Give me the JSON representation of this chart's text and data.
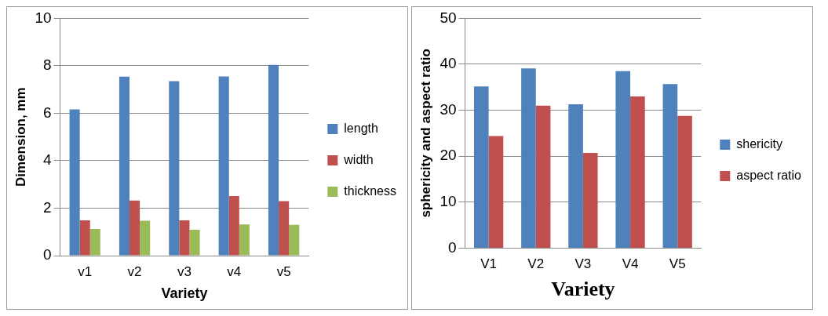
{
  "chart_data": [
    {
      "type": "bar",
      "xlabel": "Variety",
      "ylabel": "Dimension, mm",
      "categories": [
        "v1",
        "v2",
        "v3",
        "v4",
        "v5"
      ],
      "series": [
        {
          "name": "length",
          "color": "#4f81bd",
          "values": [
            6.16,
            7.54,
            7.35,
            7.55,
            8.04
          ]
        },
        {
          "name": "width",
          "color": "#c0504d",
          "values": [
            1.49,
            2.32,
            1.49,
            2.51,
            2.3
          ]
        },
        {
          "name": "thickness",
          "color": "#9bbb59",
          "values": [
            1.12,
            1.47,
            1.09,
            1.31,
            1.3
          ]
        }
      ],
      "ylim": [
        0,
        10
      ],
      "yticks": [
        0,
        2,
        4,
        6,
        8,
        10
      ],
      "grid": "y",
      "legend": "right"
    },
    {
      "type": "bar",
      "xlabel": "Variety",
      "ylabel": "sphericity and aspect ratio",
      "categories": [
        "V1",
        "V2",
        "V3",
        "V4",
        "V5"
      ],
      "series": [
        {
          "name": "shericity",
          "color": "#4f81bd",
          "values": [
            35.2,
            39.1,
            31.3,
            38.5,
            35.7
          ]
        },
        {
          "name": "aspect ratio",
          "color": "#c0504d",
          "values": [
            24.4,
            31.0,
            20.7,
            33.0,
            28.8
          ]
        }
      ],
      "ylim": [
        0,
        50
      ],
      "yticks": [
        0,
        10,
        20,
        30,
        40,
        50
      ],
      "grid": "y",
      "legend": "right"
    }
  ]
}
